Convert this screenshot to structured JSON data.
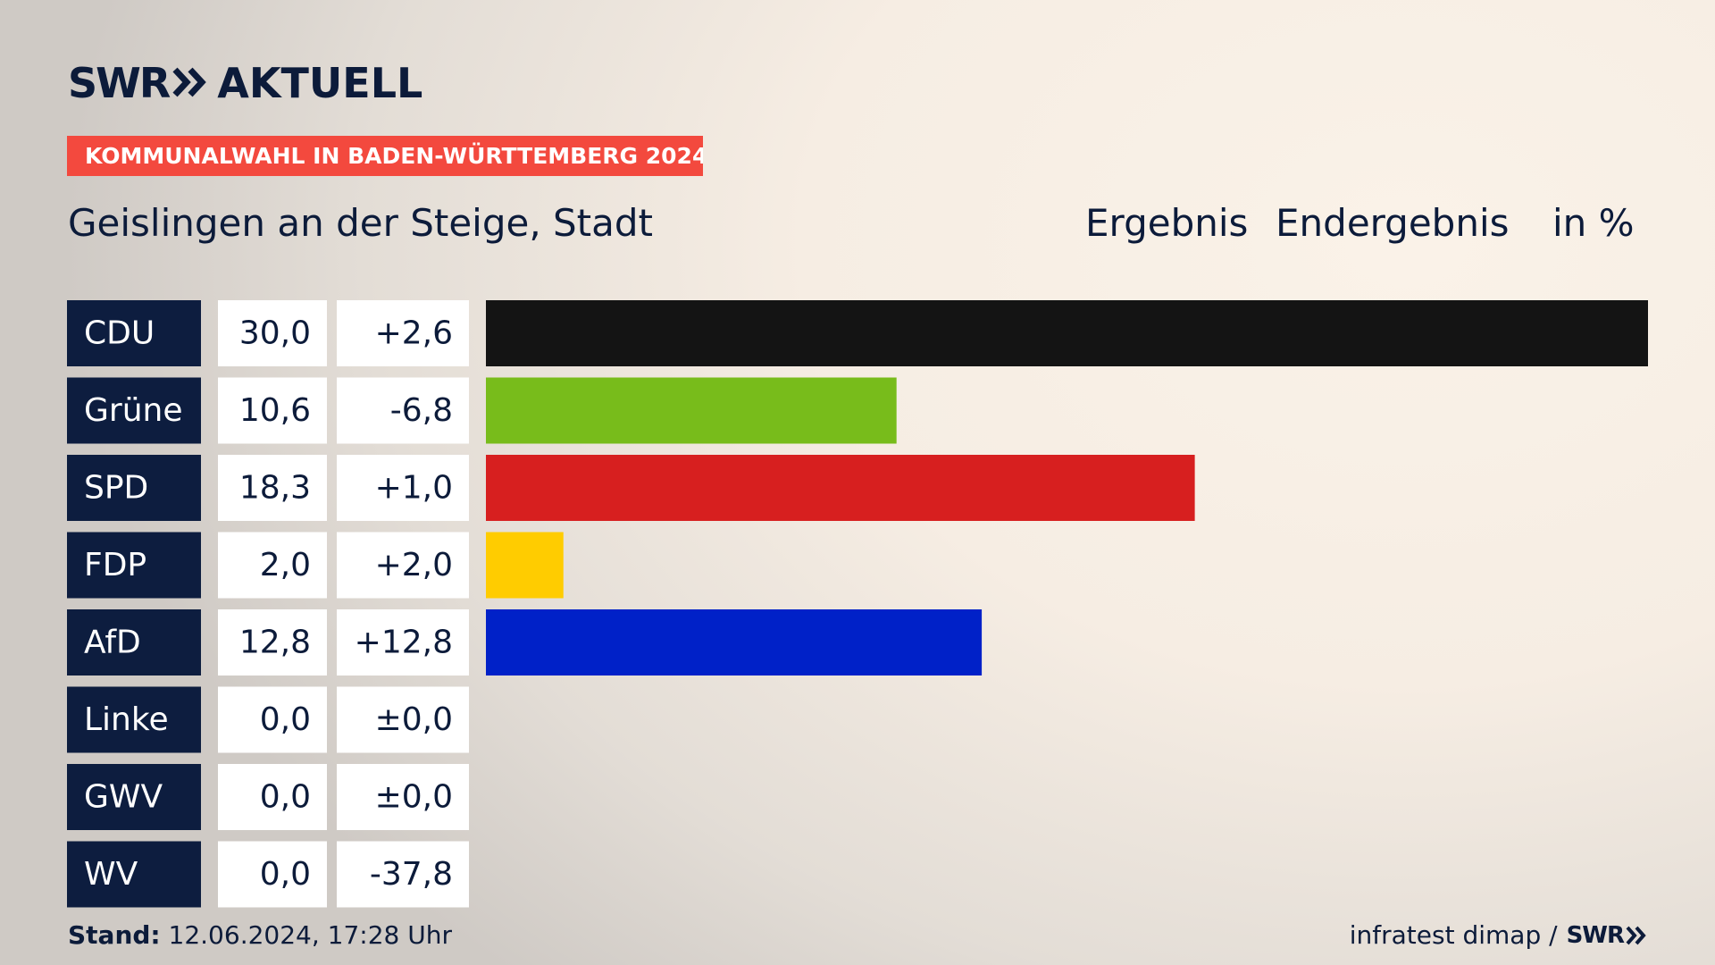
{
  "header": {
    "brand": "SWR",
    "brand_sub": "AKTUELL",
    "badge": "KOMMUNALWAHL IN BADEN-WÜRTTEMBERG 2024",
    "place": "Geislingen an der Steige, Stadt",
    "result_label": "Ergebnis",
    "status_label": "Endergebnis",
    "unit_label": "in %"
  },
  "footer": {
    "stand_label": "Stand:",
    "stand_value": "12.06.2024, 17:28 Uhr",
    "source": "infratest dimap /",
    "source_brand": "SWR"
  },
  "chart_data": {
    "type": "bar",
    "orientation": "horizontal",
    "categories": [
      "CDU",
      "Grüne",
      "SPD",
      "FDP",
      "AfD",
      "Linke",
      "GWV",
      "WV"
    ],
    "values": [
      30.0,
      10.6,
      18.3,
      2.0,
      12.8,
      0.0,
      0.0,
      0.0
    ],
    "value_labels": [
      "30,0",
      "10,6",
      "18,3",
      "2,0",
      "12,8",
      "0,0",
      "0,0",
      "0,0"
    ],
    "change_labels": [
      "+2,6",
      "-6,8",
      "+1,0",
      "+2,0",
      "+12,8",
      "±0,0",
      "±0,0",
      "-37,8"
    ],
    "changes": [
      2.6,
      -6.8,
      1.0,
      2.0,
      12.8,
      0.0,
      0.0,
      -37.8
    ],
    "colors": [
      "#141414",
      "#78bc1b",
      "#d71f1f",
      "#ffcc00",
      "#0021c8",
      "#be3075",
      "#7a7a7a",
      "#7a7a7a"
    ],
    "xlim": [
      0,
      30
    ],
    "unit": "%"
  }
}
